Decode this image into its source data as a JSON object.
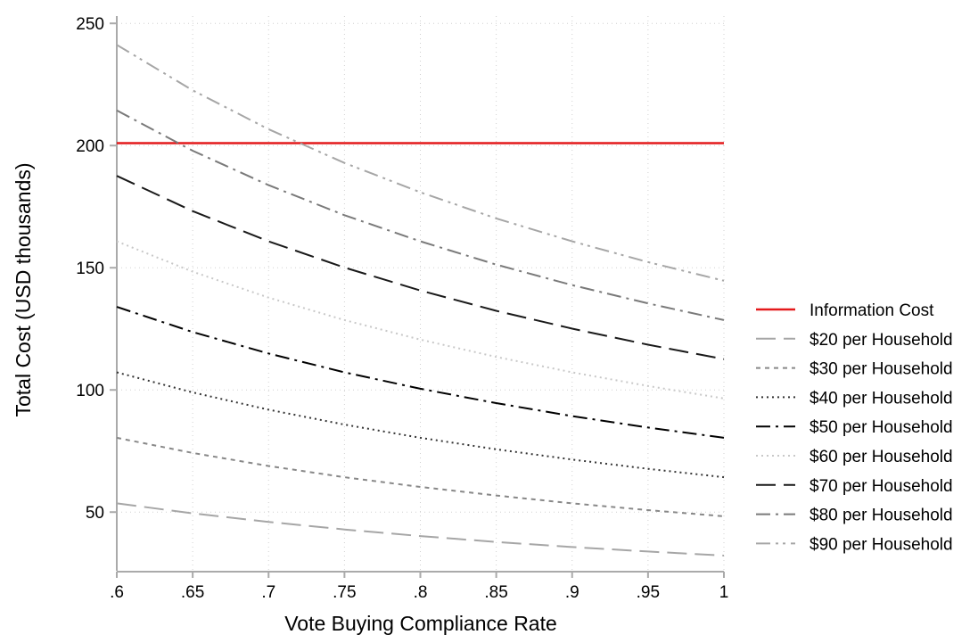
{
  "chart_data": {
    "type": "line",
    "xlabel": "Vote Buying Compliance Rate",
    "ylabel": "Total Cost (USD thousands)",
    "xlim": [
      0.6,
      1.0
    ],
    "ylim": [
      26,
      253
    ],
    "xticks": [
      0.6,
      0.65,
      0.7,
      0.75,
      0.8,
      0.85,
      0.9,
      0.95,
      1.0
    ],
    "xtick_labels": [
      ".6",
      ".65",
      ".7",
      ".75",
      ".8",
      ".85",
      ".9",
      ".95",
      "1"
    ],
    "yticks": [
      50,
      100,
      150,
      200,
      250
    ],
    "ytick_labels": [
      "50",
      "100",
      "150",
      "200",
      "250"
    ],
    "grid": true,
    "legend_position": "right",
    "x": [
      0.6,
      0.65,
      0.7,
      0.75,
      0.8,
      0.85,
      0.9,
      0.95,
      1.0
    ],
    "series": [
      {
        "name": "Information Cost",
        "color": "#e41a1c",
        "dash": "solid",
        "values": [
          201,
          201,
          201,
          201,
          201,
          201,
          201,
          201,
          201
        ]
      },
      {
        "name": "$20 per Household",
        "color": "#a6a6a6",
        "dash": "longdash",
        "values": [
          53.6,
          49.5,
          46.0,
          42.9,
          40.2,
          37.8,
          35.7,
          33.9,
          32.2
        ]
      },
      {
        "name": "$30 per Household",
        "color": "#888888",
        "dash": "shortdash",
        "values": [
          80.4,
          74.2,
          68.9,
          64.3,
          60.3,
          56.8,
          53.6,
          50.8,
          48.3
        ]
      },
      {
        "name": "$40 per Household",
        "color": "#333333",
        "dash": "dot",
        "values": [
          107.2,
          99.0,
          91.9,
          85.8,
          80.4,
          75.7,
          71.5,
          67.7,
          64.3
        ]
      },
      {
        "name": "$50 per Household",
        "color": "#000000",
        "dash": "dashdot",
        "values": [
          134.0,
          123.7,
          114.9,
          107.2,
          100.5,
          94.6,
          89.3,
          84.6,
          80.4
        ]
      },
      {
        "name": "$60 per Household",
        "color": "#c8c8c8",
        "dash": "dot",
        "values": [
          160.8,
          148.4,
          137.8,
          128.6,
          120.6,
          113.5,
          107.2,
          101.6,
          96.5
        ]
      },
      {
        "name": "$70 per Household",
        "color": "#1a1a1a",
        "dash": "longdash",
        "values": [
          187.6,
          173.2,
          160.8,
          150.1,
          140.7,
          132.4,
          125.1,
          118.5,
          112.6
        ]
      },
      {
        "name": "$80 per Household",
        "color": "#7a7a7a",
        "dash": "dashdot",
        "values": [
          214.4,
          197.9,
          183.8,
          171.5,
          160.8,
          151.3,
          142.9,
          135.4,
          128.6
        ]
      },
      {
        "name": "$90 per Household",
        "color": "#a6a6a6",
        "dash": "dashdotdot",
        "values": [
          241.2,
          222.6,
          206.7,
          192.9,
          180.9,
          170.2,
          160.8,
          152.3,
          144.7
        ]
      }
    ]
  }
}
